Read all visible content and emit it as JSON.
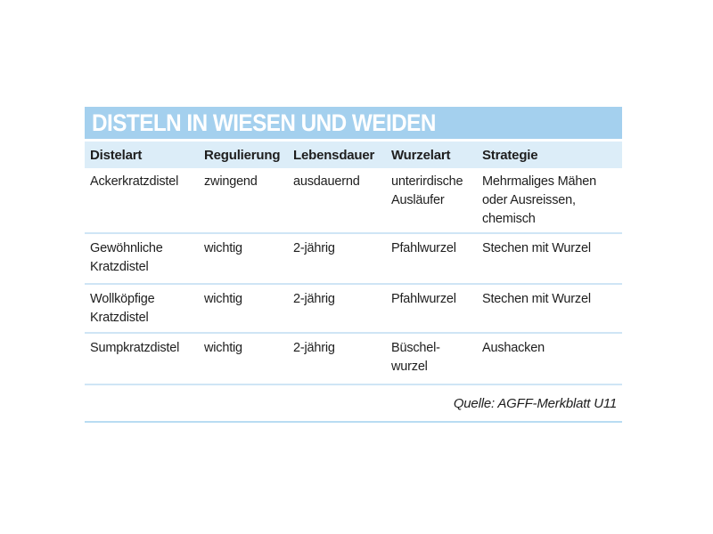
{
  "title": "DISTELN IN WIESEN UND WEIDEN",
  "headers": [
    "Distelart",
    "Regulierung",
    "Lebensdauer",
    "Wurzelart",
    "Strategie"
  ],
  "rows": [
    {
      "distelart": [
        "Ackerkratzdistel"
      ],
      "regulierung": [
        "zwingend"
      ],
      "lebensdauer": [
        "ausdauernd"
      ],
      "wurzelart": [
        "unterirdische",
        "Ausläufer"
      ],
      "strategie": [
        "Mehrmaliges Mähen",
        "oder Ausreissen,",
        "chemisch"
      ]
    },
    {
      "distelart": [
        "Gewöhnliche",
        "Kratzdistel"
      ],
      "regulierung": [
        "wichtig"
      ],
      "lebensdauer": [
        "2-jährig"
      ],
      "wurzelart": [
        "Pfahlwurzel"
      ],
      "strategie": [
        "Stechen mit Wurzel"
      ]
    },
    {
      "distelart": [
        "Wollköpfige",
        "Kratzdistel"
      ],
      "regulierung": [
        "wichtig"
      ],
      "lebensdauer": [
        "2-jährig"
      ],
      "wurzelart": [
        "Pfahlwurzel"
      ],
      "strategie": [
        "Stechen mit Wurzel"
      ]
    },
    {
      "distelart": [
        "Sumpkratzdistel"
      ],
      "regulierung": [
        "wichtig"
      ],
      "lebensdauer": [
        "2-jährig"
      ],
      "wurzelart": [
        "Büschel-",
        "wurzel"
      ],
      "strategie": [
        "Aushacken"
      ]
    }
  ],
  "source": "Quelle: AGFF-Merkblatt U11",
  "colors": {
    "title_bar": "#a4d0ee",
    "header_row": "#dcedf8",
    "row_divider": "#cfe5f5"
  }
}
